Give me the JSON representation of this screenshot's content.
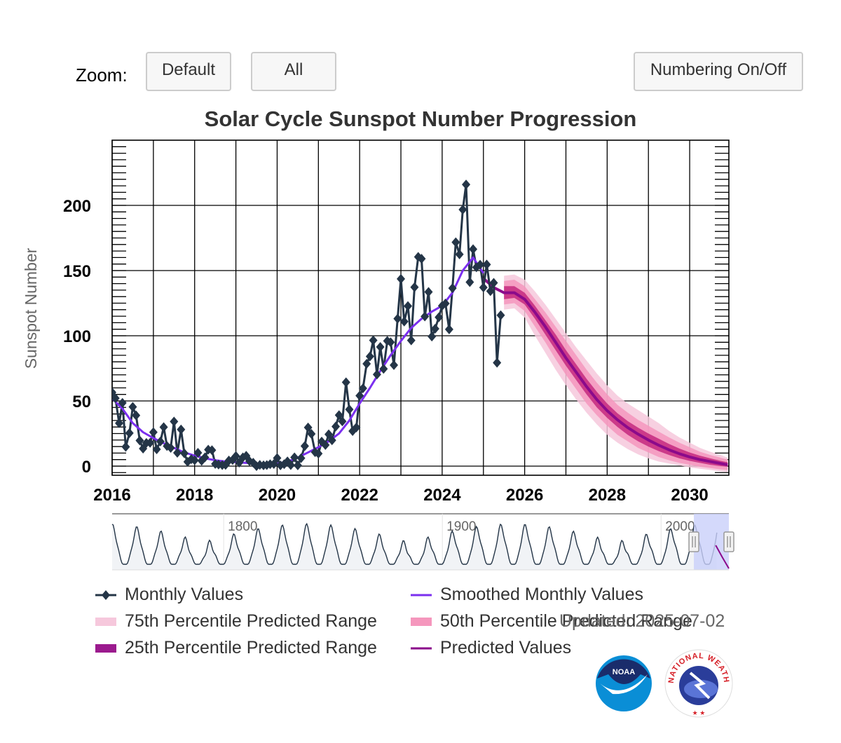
{
  "toolbar": {
    "zoom_label": "Zoom:",
    "default_label": "Default",
    "all_label": "All",
    "numbering_label": "Numbering On/Off"
  },
  "updated_text": "Updated: 2025-07-02",
  "colors": {
    "monthly": "#243547",
    "smoothed": "#7b2fef",
    "predicted": "#8b0a8b",
    "p75": "#f6c8dc",
    "p50": "#f597bd",
    "p25": "#c4287f",
    "navigator_fill": "#f1f3f6",
    "navigator_window": "#c9cffa"
  },
  "logos": [
    "noaa-logo",
    "national-weather-service-logo"
  ],
  "chart_data": {
    "type": "line",
    "title": "Solar Cycle Sunspot Number Progression",
    "ylabel": "Sunspot Number",
    "xlabel": "",
    "xlim": [
      2016.0,
      2030.95
    ],
    "ylim": [
      -7,
      250
    ],
    "x_ticks": [
      "2016",
      "2018",
      "2020",
      "2022",
      "2024",
      "2026",
      "2028",
      "2030"
    ],
    "y_ticks": [
      "0",
      "50",
      "100",
      "150",
      "200"
    ],
    "grid": true,
    "legend_position": "bottom",
    "legend": [
      {
        "label": "Monthly Values",
        "symbol": "line-diamond",
        "color": "#243547"
      },
      {
        "label": "Smoothed Monthly Values",
        "symbol": "line",
        "color": "#7b2fef"
      },
      {
        "label": "75th Percentile Predicted Range",
        "symbol": "band",
        "color": "#f6c8dc"
      },
      {
        "label": "50th Percentile Predicted Range",
        "symbol": "band",
        "color": "#f597bd"
      },
      {
        "label": "25th Percentile Predicted Range",
        "symbol": "band",
        "color": "#9b1a8e"
      },
      {
        "label": "Predicted Values",
        "symbol": "line",
        "color": "#8b0a8b"
      }
    ],
    "series": [
      {
        "name": "Monthly Values",
        "x": [
          2016.0,
          2016.08,
          2016.17,
          2016.25,
          2016.33,
          2016.42,
          2016.5,
          2016.58,
          2016.67,
          2016.75,
          2016.83,
          2016.92,
          2017.0,
          2017.08,
          2017.17,
          2017.25,
          2017.33,
          2017.42,
          2017.5,
          2017.58,
          2017.67,
          2017.75,
          2017.83,
          2017.92,
          2018.0,
          2018.08,
          2018.17,
          2018.25,
          2018.33,
          2018.42,
          2018.5,
          2018.58,
          2018.67,
          2018.75,
          2018.83,
          2018.92,
          2019.0,
          2019.08,
          2019.17,
          2019.25,
          2019.33,
          2019.42,
          2019.5,
          2019.58,
          2019.67,
          2019.75,
          2019.83,
          2019.92,
          2020.0,
          2020.08,
          2020.17,
          2020.25,
          2020.33,
          2020.42,
          2020.5,
          2020.58,
          2020.67,
          2020.75,
          2020.83,
          2020.92,
          2021.0,
          2021.08,
          2021.17,
          2021.25,
          2021.33,
          2021.42,
          2021.5,
          2021.58,
          2021.67,
          2021.75,
          2021.83,
          2021.92,
          2022.0,
          2022.08,
          2022.17,
          2022.25,
          2022.33,
          2022.42,
          2022.5,
          2022.58,
          2022.67,
          2022.75,
          2022.83,
          2022.92,
          2023.0,
          2023.08,
          2023.17,
          2023.25,
          2023.33,
          2023.42,
          2023.5,
          2023.58,
          2023.67,
          2023.75,
          2023.83,
          2023.92,
          2024.0,
          2024.08,
          2024.17,
          2024.25,
          2024.33,
          2024.42,
          2024.5,
          2024.58,
          2024.67,
          2024.75,
          2024.83,
          2024.92,
          2025.0,
          2025.08,
          2025.17,
          2025.25,
          2025.33,
          2025.42
        ],
        "values": [
          56.6,
          52.1,
          32.9,
          48.5,
          14.8,
          25.3,
          45.4,
          38.9,
          19.6,
          13.4,
          17.8,
          17.9,
          26.0,
          12.9,
          18.9,
          29.9,
          15.4,
          14.0,
          34.2,
          10.2,
          28.1,
          9.8,
          3.3,
          5.3,
          4.5,
          10.2,
          4.1,
          6.7,
          12.6,
          12.2,
          1.7,
          1.2,
          0.8,
          0.9,
          4.3,
          4.7,
          7.7,
          2.7,
          6.7,
          7.9,
          3.8,
          2.6,
          0.0,
          0.9,
          0.6,
          0.8,
          1.5,
          1.6,
          6.2,
          0.6,
          1.5,
          3.6,
          0.8,
          6.7,
          0.6,
          6.1,
          15.4,
          29.6,
          24.7,
          10.7,
          9.6,
          18.8,
          16.2,
          24.4,
          19.8,
          30.4,
          39.1,
          34.3,
          64.3,
          43.5,
          26.9,
          29.6,
          54.0,
          59.7,
          78.5,
          84.1,
          96.5,
          70.3,
          91.4,
          74.6,
          96.0,
          95.0,
          77.5,
          113.1,
          143.6,
          110.9,
          122.8,
          96.4,
          137.2,
          160.5,
          159.1,
          114.8,
          133.6,
          99.4,
          105.4,
          114.2,
          123.0,
          124.7,
          104.9,
          136.5,
          171.7,
          162.4,
          196.8,
          216.0,
          141.1,
          166.4,
          152.5,
          154.5,
          137.0,
          154.6,
          134.2,
          140.6,
          79.3,
          115.7
        ]
      },
      {
        "name": "Smoothed Monthly Values",
        "x": [
          2016.0,
          2016.25,
          2016.5,
          2016.75,
          2017.0,
          2017.25,
          2017.5,
          2017.75,
          2018.0,
          2018.25,
          2018.5,
          2018.75,
          2019.0,
          2019.25,
          2019.5,
          2019.75,
          2020.0,
          2020.25,
          2020.5,
          2020.75,
          2021.0,
          2021.25,
          2021.5,
          2021.75,
          2022.0,
          2022.25,
          2022.5,
          2022.75,
          2023.0,
          2023.25,
          2023.5,
          2023.75,
          2024.0,
          2024.25,
          2024.5,
          2024.75,
          2025.0
        ],
        "values": [
          52.0,
          44.0,
          33.0,
          26.0,
          21.5,
          17.5,
          14.0,
          10.5,
          8.0,
          6.0,
          4.5,
          3.5,
          3.0,
          2.5,
          1.8,
          1.6,
          1.8,
          3.5,
          6.5,
          10.5,
          14.5,
          19.0,
          25.0,
          35.0,
          48.0,
          60.0,
          73.0,
          85.0,
          96.0,
          106.0,
          113.0,
          118.5,
          123.0,
          133.0,
          150.0,
          160.0,
          148.0
        ]
      },
      {
        "name": "Predicted Values",
        "x": [
          2025.0,
          2025.25,
          2025.5,
          2025.75,
          2026.0,
          2026.25,
          2026.5,
          2026.75,
          2027.0,
          2027.25,
          2027.5,
          2027.75,
          2028.0,
          2028.25,
          2028.5,
          2028.75,
          2029.0,
          2029.25,
          2029.5,
          2029.75,
          2030.0,
          2030.25,
          2030.5,
          2030.75,
          2030.92
        ],
        "values": [
          144.0,
          137.0,
          133.0,
          133.0,
          128.0,
          118.0,
          107.0,
          95.0,
          83.0,
          72.0,
          61.0,
          51.0,
          42.5,
          35.5,
          29.5,
          24.5,
          20.0,
          16.0,
          12.5,
          9.5,
          7.0,
          5.0,
          3.5,
          2.0,
          1.0
        ]
      },
      {
        "name": "75th Percentile Predicted Range",
        "x": [
          2025.5,
          2025.75,
          2026.0,
          2026.25,
          2026.5,
          2026.75,
          2027.0,
          2027.25,
          2027.5,
          2027.75,
          2028.0,
          2028.25,
          2028.5,
          2028.75,
          2029.0,
          2029.25,
          2029.5,
          2029.75,
          2030.0,
          2030.25,
          2030.5,
          2030.75,
          2030.92
        ],
        "low": [
          120.0,
          121.0,
          114.0,
          100.0,
          87.0,
          74.0,
          62.0,
          51.0,
          41.0,
          32.0,
          24.0,
          18.0,
          13.0,
          9.0,
          6.0,
          3.5,
          2.0,
          0.5,
          -1.0,
          -2.0,
          -3.0,
          -4.0,
          -4.5
        ],
        "high": [
          146.0,
          147.0,
          143.0,
          134.0,
          124.0,
          113.0,
          102.0,
          91.0,
          81.0,
          71.0,
          62.0,
          54.0,
          48.0,
          43.0,
          38.0,
          33.0,
          27.0,
          22.0,
          18.0,
          14.0,
          11.0,
          8.5,
          6.5
        ]
      },
      {
        "name": "50th Percentile Predicted Range",
        "x": [
          2025.5,
          2025.75,
          2026.0,
          2026.25,
          2026.5,
          2026.75,
          2027.0,
          2027.25,
          2027.5,
          2027.75,
          2028.0,
          2028.25,
          2028.5,
          2028.75,
          2029.0,
          2029.25,
          2029.5,
          2029.75,
          2030.0,
          2030.25,
          2030.5,
          2030.75,
          2030.92
        ],
        "low": [
          124.0,
          125.0,
          119.0,
          107.0,
          95.0,
          82.0,
          70.0,
          59.0,
          48.0,
          39.0,
          31.0,
          24.0,
          19.0,
          14.0,
          10.5,
          7.0,
          4.5,
          2.5,
          1.0,
          -0.5,
          -1.5,
          -2.5,
          -3.0
        ],
        "high": [
          142.0,
          143.0,
          138.0,
          128.0,
          118.0,
          107.0,
          96.0,
          85.0,
          74.0,
          64.0,
          55.0,
          47.0,
          41.0,
          35.5,
          31.0,
          26.5,
          22.0,
          18.0,
          14.5,
          11.0,
          8.5,
          6.5,
          5.0
        ]
      },
      {
        "name": "25th Percentile Predicted Range",
        "x": [
          2025.5,
          2025.75,
          2026.0,
          2026.25,
          2026.5,
          2026.75,
          2027.0,
          2027.25,
          2027.5,
          2027.75,
          2028.0,
          2028.25,
          2028.5,
          2028.75,
          2029.0,
          2029.25,
          2029.5,
          2029.75,
          2030.0,
          2030.25,
          2030.5,
          2030.75,
          2030.92
        ],
        "low": [
          128.0,
          129.0,
          124.0,
          113.0,
          101.0,
          89.0,
          77.0,
          66.0,
          55.0,
          45.0,
          37.0,
          30.0,
          24.0,
          19.0,
          15.0,
          11.5,
          8.5,
          6.0,
          4.0,
          2.5,
          1.0,
          0.0,
          -0.5
        ],
        "high": [
          138.0,
          138.0,
          133.0,
          123.0,
          112.0,
          101.0,
          89.0,
          78.0,
          67.0,
          57.0,
          48.0,
          40.5,
          34.5,
          29.5,
          25.0,
          21.0,
          17.0,
          13.5,
          10.5,
          8.0,
          6.0,
          4.0,
          3.0
        ]
      }
    ],
    "navigator": {
      "x_labels": [
        "1800",
        "1900",
        "2000"
      ],
      "xlim": [
        1749,
        2031
      ],
      "window": [
        2015.0,
        2031.0
      ]
    }
  }
}
